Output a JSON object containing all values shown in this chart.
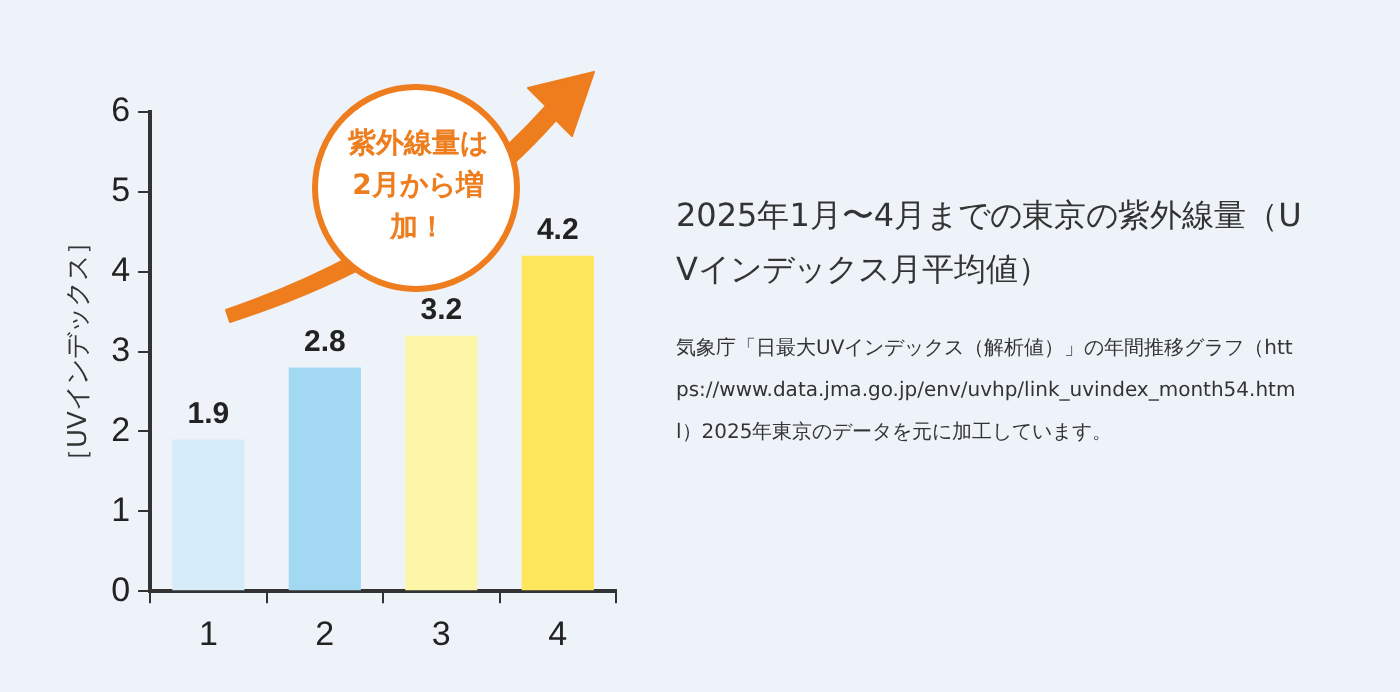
{
  "chart_data": {
    "type": "bar",
    "title": "2025年1月〜4月までの東京の紫外線量（UVインデックス月平均値）",
    "ylabel": "［UVインデックス］",
    "categories": [
      "1",
      "2",
      "3",
      "4"
    ],
    "values": [
      1.9,
      2.8,
      3.2,
      4.2
    ],
    "colors": [
      "#d6ecf9",
      "#a3d8f3",
      "#fdf6a8",
      "#fee65c"
    ],
    "ylim": [
      0,
      6
    ],
    "yticks": [
      0,
      1,
      2,
      3,
      4,
      5,
      6
    ],
    "grid": false,
    "legend": false,
    "data_labels": true,
    "annotations": [
      "紫外線量は2月から増加！",
      "気象庁「日最大UVインデックス（解析値）」の年間推移グラフ（https://www.data.jma.go.jp/env/uvhp/link_uvindex_month54.html）2025年東京のデータを元に加工しています。"
    ]
  }
}
